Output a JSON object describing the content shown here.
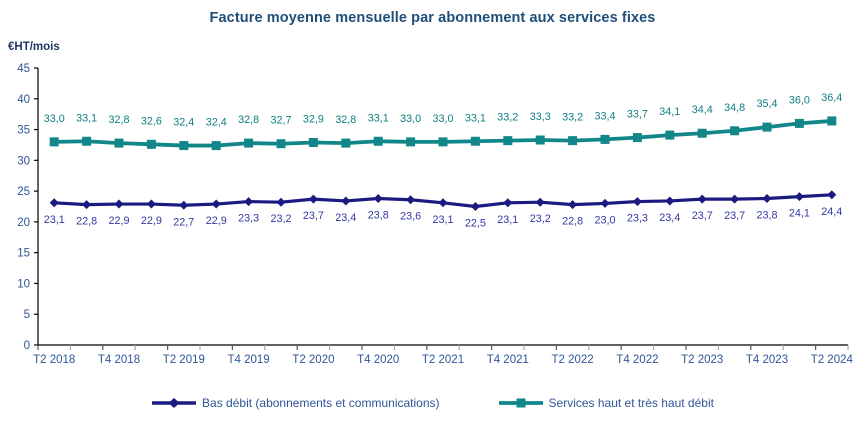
{
  "chart_data": {
    "type": "line",
    "title": "Facture moyenne mensuelle par abonnement aux services fixes",
    "ylabel": "€HT/mois",
    "ylim": [
      0,
      45
    ],
    "y_ticks": [
      0,
      5,
      10,
      15,
      20,
      25,
      30,
      35,
      40,
      45
    ],
    "x_tick_labels": [
      "T2 2018",
      "T4 2018",
      "T2 2019",
      "T4 2019",
      "T2 2020",
      "T4 2020",
      "T2 2021",
      "T4 2021",
      "T2 2022",
      "T4 2022",
      "T2 2023",
      "T4 2023",
      "T2 2024"
    ],
    "x_label_every": 2,
    "n_points": 25,
    "grid": false,
    "legend_position": "bottom",
    "decimal_separator": ",",
    "series": [
      {
        "name": "Bas débit (abonnements et communications)",
        "color": "#1A1A80",
        "label_color": "#3338A0",
        "marker": "diamond",
        "label_position": "below",
        "values": [
          23.1,
          22.8,
          22.9,
          22.9,
          22.7,
          22.9,
          23.3,
          23.2,
          23.7,
          23.4,
          23.8,
          23.6,
          23.1,
          22.5,
          23.1,
          23.2,
          22.8,
          23.0,
          23.3,
          23.4,
          23.7,
          23.7,
          23.8,
          24.1,
          24.4
        ],
        "labels": [
          "23,1",
          "22,8",
          "22,9",
          "22,9",
          "22,7",
          "22,9",
          "23,3",
          "23,2",
          "23,7",
          "23,4",
          "23,8",
          "23,6",
          "23,1",
          "22,5",
          "23,1",
          "23,2",
          "22,8",
          "23,0",
          "23,3",
          "23,4",
          "23,7",
          "23,7",
          "23,8",
          "24,1",
          "24,4"
        ]
      },
      {
        "name": "Services haut et très haut débit",
        "color": "#118789",
        "label_color": "#0F7E84",
        "marker": "square",
        "label_position": "above",
        "values": [
          33.0,
          33.1,
          32.8,
          32.6,
          32.4,
          32.4,
          32.8,
          32.7,
          32.9,
          32.8,
          33.1,
          33.0,
          33.0,
          33.1,
          33.2,
          33.3,
          33.2,
          33.4,
          33.7,
          34.1,
          34.4,
          34.8,
          35.4,
          36.0,
          36.4
        ],
        "labels": [
          "33,0",
          "33,1",
          "32,8",
          "32,6",
          "32,4",
          "32,4",
          "32,8",
          "32,7",
          "32,9",
          "32,8",
          "33,1",
          "33,0",
          "33,0",
          "33,1",
          "33,2",
          "33,3",
          "33,2",
          "33,4",
          "33,7",
          "34,1",
          "34,4",
          "34,8",
          "35,4",
          "36,0",
          "36,4"
        ]
      }
    ]
  },
  "colors": {
    "title": "#1F4E79",
    "unit_label": "#1F3864",
    "axis_labels": "#2F5597",
    "legend_text": "#2F5597",
    "axis_line": "#000000",
    "tick_major": "#595959",
    "tick_minor": "#A6A6A6",
    "background": "#FFFFFF"
  }
}
